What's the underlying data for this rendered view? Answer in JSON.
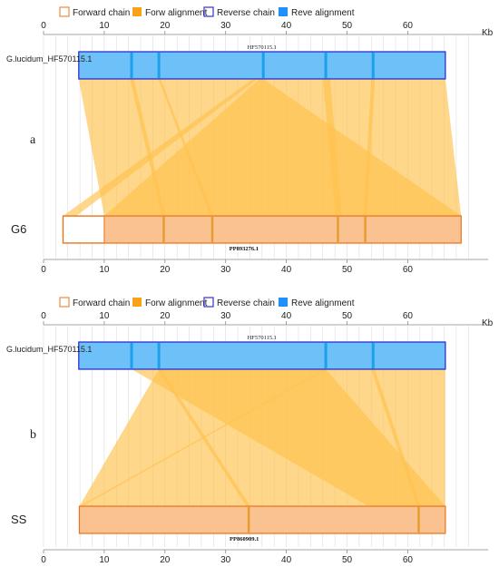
{
  "legend": {
    "items": [
      {
        "label": "Forward chain",
        "kind": "outline",
        "color": "#f08a3c"
      },
      {
        "label": "Forw alignment",
        "kind": "fill",
        "color": "#f7a21a"
      },
      {
        "label": "Reverse chain",
        "kind": "outline",
        "color": "#3333cc"
      },
      {
        "label": "Reve alignment",
        "kind": "fill",
        "color": "#1e90ff"
      }
    ]
  },
  "axis": {
    "unit": "Kb",
    "ticks": [
      "0",
      "10",
      "20",
      "30",
      "40",
      "50",
      "60"
    ],
    "tick_values": [
      0,
      10,
      20,
      30,
      40,
      50,
      60
    ],
    "range": [
      0,
      70
    ]
  },
  "colors": {
    "alignment": "#ffc14d",
    "forward_fill": "#f9c290",
    "forward_stroke": "#e8731a",
    "forward_mark": "#e79a2c",
    "reverse_fill": "#6ec0f8",
    "reverse_stroke": "#2222cc",
    "reverse_mark": "#1ba0ee",
    "grid": "#dddddd"
  },
  "panels": [
    {
      "letter": "a",
      "sample": "G6",
      "reference": {
        "row_label": "G.lucidum_HF570115.1",
        "seq_name": "HF570115.1",
        "start": 5.8,
        "end": 66.2,
        "marks": [
          14.5,
          19,
          36.2,
          46.5,
          54.3
        ]
      },
      "query": {
        "seq_name": "PP893276.1",
        "start": 3.2,
        "end": 68.8,
        "gap": [
          3.2,
          10
        ],
        "marks": [
          19.8,
          27.8,
          48.5,
          53
        ]
      },
      "alignments": [
        {
          "r1": 5.8,
          "r2": 36.2,
          "q1": 10,
          "q2": 68.8
        },
        {
          "r1": 35.6,
          "r2": 66.2,
          "q1": 10,
          "q2": 68.8
        },
        {
          "r1": 34.5,
          "r2": 35.3,
          "q1": 3.2,
          "q2": 5.4
        },
        {
          "r1": 14.2,
          "r2": 14.9,
          "q1": 19.5,
          "q2": 20.1
        },
        {
          "r1": 18.9,
          "r2": 19.3,
          "q1": 27.5,
          "q2": 28
        },
        {
          "r1": 46,
          "r2": 47.2,
          "q1": 48.1,
          "q2": 49.2
        },
        {
          "r1": 54,
          "r2": 54.6,
          "q1": 52.7,
          "q2": 53.3
        }
      ]
    },
    {
      "letter": "b",
      "sample": "SS",
      "reference": {
        "row_label": "G.lucidum_HF570115.1",
        "seq_name": "HF570115.1",
        "start": 5.8,
        "end": 66.2,
        "marks": [
          14.5,
          19,
          46.5,
          54.3
        ]
      },
      "query": {
        "seq_name": "PP860909.1",
        "start": 5.9,
        "end": 66.2,
        "gap": null,
        "marks": [
          33.8,
          61.8
        ]
      },
      "alignments": [
        {
          "r1": 19,
          "r2": 66.2,
          "q1": 5.9,
          "q2": 66.2
        },
        {
          "r1": 14.5,
          "r2": 46.5,
          "q1": 53.5,
          "q2": 66.2
        },
        {
          "r1": 18.8,
          "r2": 19.4,
          "q1": 33.4,
          "q2": 34.1
        },
        {
          "r1": 54,
          "r2": 54.6,
          "q1": 61.5,
          "q2": 62.1
        },
        {
          "r1": 46.2,
          "r2": 46.6,
          "q1": 5.9,
          "q2": 6.4
        }
      ]
    }
  ]
}
